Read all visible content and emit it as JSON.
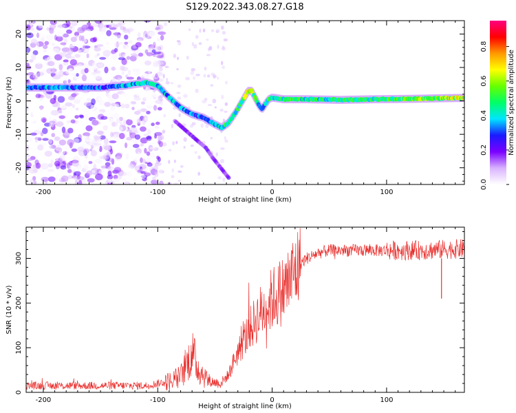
{
  "title": "S129.2022.343.08.27.G18",
  "chart_data": [
    {
      "type": "heatmap",
      "xlabel": "Height of straight line (km)",
      "ylabel": "Frequency (Hz)",
      "xlim": [
        -215,
        168
      ],
      "ylim": [
        -25,
        24
      ],
      "xticks": [
        -200,
        -100,
        0,
        100
      ],
      "yticks": [
        -20,
        -10,
        0,
        10,
        20
      ],
      "colorbar": {
        "label": "Normalized spectral amplitude",
        "range": [
          0,
          0.95
        ],
        "ticks": [
          0.0,
          0.2,
          0.4,
          0.6,
          0.8
        ],
        "colors": [
          "#ffffff",
          "#d9b3ff",
          "#7a00ff",
          "#1a1aff",
          "#00e5ff",
          "#00ff66",
          "#66ff00",
          "#ffff00",
          "#ff9900",
          "#ff0000",
          "#ff0080"
        ]
      },
      "ridge": {
        "x": [
          -215,
          -190,
          -170,
          -150,
          -130,
          -110,
          -100,
          -90,
          -80,
          -70,
          -60,
          -50,
          -44,
          -38,
          -32,
          -26,
          -21,
          -18,
          -15,
          -12,
          -9,
          -6,
          -3,
          0,
          10,
          30,
          60,
          90,
          120,
          150,
          168
        ],
        "y": [
          4,
          4,
          4,
          4,
          4.5,
          5.5,
          4.5,
          1,
          -2,
          -4,
          -5,
          -7,
          -8,
          -6.5,
          -3.5,
          0,
          3,
          3,
          1,
          -1,
          -2.5,
          -1,
          0.5,
          1,
          0.5,
          0.5,
          0.3,
          0.5,
          0.6,
          0.8,
          0.9
        ],
        "amp": [
          0.3,
          0.35,
          0.3,
          0.3,
          0.35,
          0.4,
          0.35,
          0.35,
          0.35,
          0.3,
          0.3,
          0.4,
          0.45,
          0.45,
          0.45,
          0.5,
          0.75,
          0.7,
          0.45,
          0.4,
          0.4,
          0.4,
          0.45,
          0.45,
          0.45,
          0.45,
          0.45,
          0.45,
          0.5,
          0.55,
          0.6
        ]
      },
      "branch": {
        "x": [
          -85,
          -75,
          -65,
          -58,
          -52,
          -45,
          -38
        ],
        "y": [
          -6,
          -9,
          -12,
          -14,
          -17,
          -20,
          -23
        ]
      }
    },
    {
      "type": "line",
      "xlabel": "Height of straight line (km)",
      "ylabel": "SNR (10 * v/v)",
      "xlim": [
        -215,
        168
      ],
      "ylim": [
        0,
        370
      ],
      "xticks": [
        -200,
        -100,
        0,
        100
      ],
      "yticks": [
        0,
        100,
        200,
        300
      ],
      "color": "#e8302e",
      "outlier": {
        "x": 148,
        "y": 210
      },
      "x": [
        -215,
        -150,
        -110,
        -90,
        -80,
        -75,
        -70,
        -65,
        -55,
        -45,
        -38,
        -32,
        -28,
        -22,
        -15,
        -10,
        -5,
        0,
        5,
        10,
        15,
        20,
        25,
        30,
        40,
        50,
        70,
        100,
        130,
        150,
        168
      ],
      "y": [
        15,
        15,
        15,
        25,
        35,
        60,
        90,
        55,
        25,
        20,
        40,
        80,
        100,
        130,
        160,
        180,
        190,
        210,
        220,
        230,
        250,
        270,
        290,
        300,
        312,
        318,
        318,
        318,
        318,
        320,
        322
      ]
    }
  ]
}
